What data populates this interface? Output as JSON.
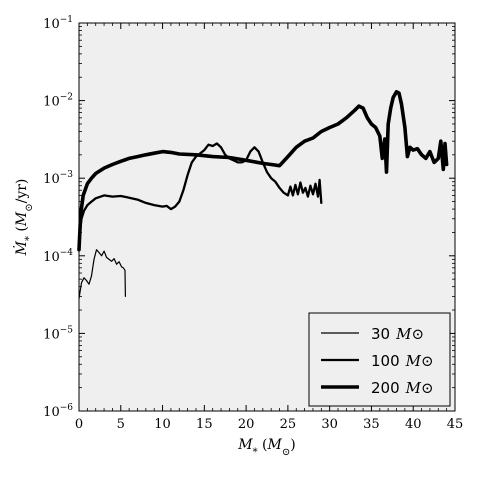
{
  "chart_data": {
    "type": "line",
    "title": "",
    "xlabel": "M_* (M_⊙)",
    "ylabel": "Ṁ_* (M_⊙/yr)",
    "x_scale": "linear",
    "y_scale": "log",
    "xlim": [
      0,
      45
    ],
    "ylim": [
      1e-06,
      0.1
    ],
    "x_ticks": [
      0,
      5,
      10,
      15,
      20,
      25,
      30,
      35,
      40,
      45
    ],
    "x_tick_labels": [
      "0",
      "5",
      "10",
      "15",
      "20",
      "25",
      "30",
      "35",
      "40",
      "45"
    ],
    "y_ticks": [
      1e-06,
      1e-05,
      0.0001,
      0.001,
      0.01,
      0.1
    ],
    "y_tick_labels": [
      {
        "base": "10",
        "exp": "−6"
      },
      {
        "base": "10",
        "exp": "−5"
      },
      {
        "base": "10",
        "exp": "−4"
      },
      {
        "base": "10",
        "exp": "−3"
      },
      {
        "base": "10",
        "exp": "−2"
      },
      {
        "base": "10",
        "exp": "−1"
      }
    ],
    "grid": false,
    "background": "#efefef",
    "line_color": "#000000",
    "legend": {
      "position": "bottom-right",
      "entries": [
        {
          "value": "30",
          "unit": "M⊙"
        },
        {
          "value": "100",
          "unit": "M⊙"
        },
        {
          "value": "200",
          "unit": "M⊙"
        }
      ]
    },
    "series": [
      {
        "stroke": 1.2,
        "x": [
          0.0,
          0.3,
          0.6,
          0.9,
          1.2,
          1.5,
          1.8,
          2.1,
          2.4,
          2.7,
          3.0,
          3.3,
          3.6,
          3.9,
          4.2,
          4.5,
          4.8,
          5.1,
          5.3,
          5.5,
          5.55
        ],
        "y": [
          2.8e-05,
          4.5e-05,
          5.2e-05,
          4.8e-05,
          4.3e-05,
          5.5e-05,
          9e-05,
          0.00012,
          0.00011,
          0.0001,
          0.000115,
          9.5e-05,
          9e-05,
          8.5e-05,
          9.2e-05,
          7.8e-05,
          8.4e-05,
          7.2e-05,
          7e-05,
          6.5e-05,
          3e-05
        ]
      },
      {
        "stroke": 2.3,
        "x": [
          0.0,
          0.3,
          0.6,
          1.0,
          1.5,
          2.0,
          3.0,
          4.0,
          5.0,
          6.0,
          7.0,
          8.0,
          9.0,
          10.0,
          10.5,
          11.0,
          11.5,
          12.0,
          12.5,
          13.0,
          13.5,
          14.0,
          15.0,
          15.5,
          16.0,
          16.5,
          17.0,
          17.5,
          18.0,
          18.5,
          19.0,
          19.5,
          20.0,
          20.5,
          21.0,
          21.5,
          22.0,
          22.5,
          23.0,
          23.5,
          24.0,
          24.5,
          25.0,
          25.3,
          25.6,
          25.9,
          26.2,
          26.5,
          26.8,
          27.1,
          27.4,
          27.7,
          28.0,
          28.3,
          28.6,
          28.8,
          29.0
        ],
        "y": [
          0.00015,
          0.0003,
          0.00038,
          0.00045,
          0.0005,
          0.00055,
          0.0006,
          0.00058,
          0.00059,
          0.00056,
          0.00053,
          0.00048,
          0.00045,
          0.00043,
          0.00044,
          0.0004,
          0.00043,
          0.0005,
          0.0007,
          0.0011,
          0.0016,
          0.0019,
          0.0023,
          0.0027,
          0.0026,
          0.0028,
          0.0025,
          0.002,
          0.0018,
          0.0017,
          0.0016,
          0.0016,
          0.0017,
          0.0022,
          0.0025,
          0.0022,
          0.0016,
          0.0012,
          0.001,
          0.0009,
          0.00075,
          0.00065,
          0.0006,
          0.00078,
          0.0006,
          0.00082,
          0.00062,
          0.00088,
          0.00065,
          0.00075,
          0.00058,
          0.0008,
          0.00062,
          0.00085,
          0.00058,
          0.00095,
          0.00048
        ]
      },
      {
        "stroke": 3.6,
        "x": [
          0.0,
          0.2,
          0.5,
          1.0,
          1.5,
          2.0,
          3.0,
          4.0,
          5.0,
          6.0,
          7.0,
          8.0,
          9.0,
          10.0,
          11.0,
          12.0,
          14.0,
          16.0,
          18.0,
          20.0,
          22.0,
          23.0,
          24.0,
          25.0,
          26.0,
          27.0,
          28.0,
          29.0,
          30.0,
          31.0,
          32.0,
          33.0,
          33.5,
          34.0,
          34.5,
          35.0,
          35.5,
          36.0,
          36.3,
          36.6,
          36.8,
          37.0,
          37.3,
          37.6,
          38.0,
          38.3,
          38.6,
          39.0,
          39.3,
          39.6,
          40.0,
          40.5,
          41.0,
          41.5,
          42.0,
          42.5,
          43.0,
          43.3,
          43.6,
          43.8,
          44.0
        ],
        "y": [
          0.00012,
          0.00035,
          0.0006,
          0.00085,
          0.001,
          0.00115,
          0.00135,
          0.0015,
          0.00165,
          0.0018,
          0.0019,
          0.002,
          0.0021,
          0.0022,
          0.00215,
          0.00205,
          0.002,
          0.0019,
          0.00185,
          0.0017,
          0.00155,
          0.0015,
          0.00145,
          0.0019,
          0.0025,
          0.003,
          0.0033,
          0.004,
          0.0045,
          0.005,
          0.006,
          0.0075,
          0.0085,
          0.008,
          0.006,
          0.005,
          0.0045,
          0.0035,
          0.0018,
          0.0032,
          0.0012,
          0.005,
          0.008,
          0.011,
          0.013,
          0.0125,
          0.009,
          0.0045,
          0.0019,
          0.0025,
          0.0023,
          0.0024,
          0.002,
          0.0018,
          0.0022,
          0.0016,
          0.0018,
          0.003,
          0.0013,
          0.0028,
          0.0015
        ]
      }
    ]
  }
}
